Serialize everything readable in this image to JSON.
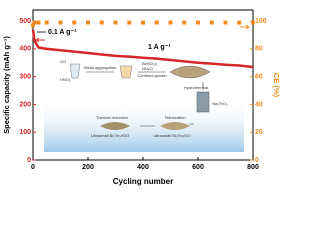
{
  "chart_data": {
    "type": "line",
    "xlabel": "Cycling number",
    "ylabel": "Specific capacity (mAh g⁻¹)",
    "y2label": "CE (%)",
    "x": [
      0,
      5,
      20,
      50,
      100,
      150,
      200,
      250,
      300,
      350,
      400,
      450,
      500,
      550,
      600,
      650,
      700,
      750,
      800
    ],
    "series": [
      {
        "name": "Specific capacity",
        "color": "#d62728",
        "values": [
          470,
          430,
          405,
          400,
          395,
          390,
          385,
          380,
          375,
          372,
          368,
          365,
          360,
          355,
          350,
          347,
          343,
          340,
          335
        ]
      },
      {
        "name": "CE",
        "color": "#f28c1e",
        "axis": "y2",
        "values": [
          97,
          99,
          99,
          99,
          99,
          99,
          99,
          99,
          99,
          99,
          99,
          99,
          99,
          99,
          99,
          99,
          99,
          99,
          99
        ]
      }
    ],
    "xlim": [
      0,
      800
    ],
    "xticks": [
      0,
      200,
      400,
      600,
      800
    ],
    "ylim": [
      0,
      540
    ],
    "yticks": [
      0,
      100,
      200,
      300,
      400,
      500
    ],
    "y2lim": [
      0,
      108
    ],
    "y2ticks": [
      0,
      20,
      40,
      60,
      80,
      100
    ],
    "annotations": [
      "0.1 A g⁻¹",
      "1 A g⁻¹"
    ],
    "inset_labels": [
      "GO",
      "HNO₃",
      "Weak aggregation",
      "Bi(NO₃)₃",
      "NH₄Cl",
      "Confined growth",
      "Hydrothermal",
      "Na₂TeO₃",
      "Tellurization",
      "Thermal reduction",
      "Ultrasmall Bi₂Te₃/rGO",
      "Ultrasmall Bi₂Te₃/GO"
    ]
  }
}
